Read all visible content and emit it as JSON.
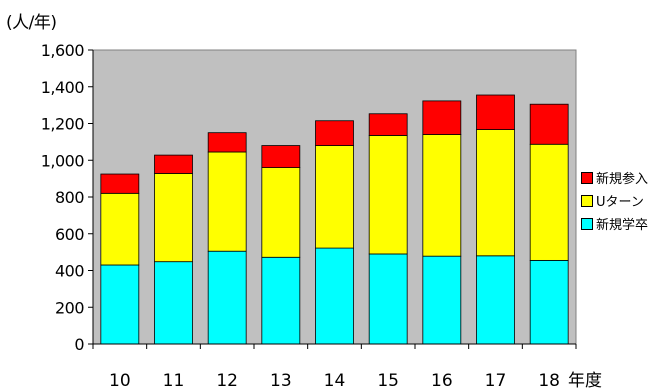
{
  "chart_data": {
    "type": "bar",
    "stacked": true,
    "unit_label": "(人/年)",
    "xlabel": "年度",
    "categories": [
      "10",
      "11",
      "12",
      "13",
      "14",
      "15",
      "16",
      "17",
      "18"
    ],
    "yticks": [
      "0",
      "200",
      "400",
      "600",
      "800",
      "1,000",
      "1,200",
      "1,400",
      "1,600"
    ],
    "ylim": [
      0,
      1600
    ],
    "series": [
      {
        "name": "新規学卒",
        "color": "#00FFFF",
        "values": [
          430,
          448,
          505,
          472,
          522,
          490,
          478,
          480,
          455
        ]
      },
      {
        "name": "Uターン",
        "color": "#FFFF00",
        "values": [
          390,
          480,
          540,
          488,
          558,
          645,
          662,
          687,
          632
        ]
      },
      {
        "name": "新規参入",
        "color": "#FF0000",
        "values": [
          105,
          100,
          105,
          120,
          135,
          118,
          183,
          188,
          218
        ]
      }
    ],
    "legend_order": [
      2,
      1,
      0
    ],
    "legend_position": "right",
    "plot_background": "#C0C0C0",
    "grid": false
  }
}
